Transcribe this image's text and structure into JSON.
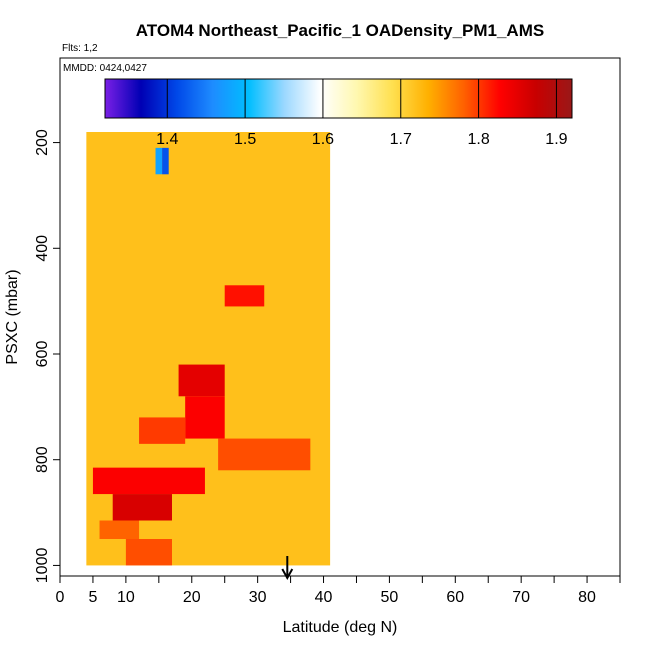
{
  "chart_data": {
    "type": "heatmap",
    "title": "ATOM4 Northeast_Pacific_1 OADensity_PM1_AMS",
    "flights_note": "Flts: 1,2",
    "dates_note": "MMDD: 0424,0427",
    "xlabel": "Latitude (deg N)",
    "ylabel": "PSXC (mbar)",
    "xlim": [
      0,
      85
    ],
    "ylim": [
      1020,
      40
    ],
    "x_ticks": [
      0,
      5,
      10,
      20,
      30,
      40,
      50,
      60,
      70,
      80
    ],
    "x_minor_ticks": [
      15,
      25,
      35,
      45,
      55,
      65,
      75,
      85
    ],
    "y_ticks": [
      200,
      400,
      600,
      800,
      1000
    ],
    "colorbar": {
      "min": 1.32,
      "max": 1.92,
      "ticks": [
        1.4,
        1.5,
        1.6,
        1.7,
        1.8,
        1.9
      ],
      "stops": [
        "#7a1fe6",
        "#0000b4",
        "#0048e8",
        "#1e8cff",
        "#00beff",
        "#9cd8ff",
        "#ffffff",
        "#fff8b0",
        "#ffe050",
        "#ffb000",
        "#ff6000",
        "#ff0000",
        "#c80000",
        "#9a1818"
      ]
    },
    "background_value": 1.72,
    "cells": [
      {
        "lat": [
          4,
          41
        ],
        "p": [
          180,
          1000
        ],
        "v": 1.72
      },
      {
        "lat": [
          25,
          31
        ],
        "p": [
          470,
          510
        ],
        "v": 1.82
      },
      {
        "lat": [
          18,
          25
        ],
        "p": [
          620,
          680
        ],
        "v": 1.85
      },
      {
        "lat": [
          19,
          25
        ],
        "p": [
          680,
          760
        ],
        "v": 1.83
      },
      {
        "lat": [
          12,
          19
        ],
        "p": [
          720,
          770
        ],
        "v": 1.8
      },
      {
        "lat": [
          24,
          38
        ],
        "p": [
          760,
          820
        ],
        "v": 1.79
      },
      {
        "lat": [
          5,
          22
        ],
        "p": [
          815,
          865
        ],
        "v": 1.83
      },
      {
        "lat": [
          8,
          17
        ],
        "p": [
          865,
          915
        ],
        "v": 1.86
      },
      {
        "lat": [
          6,
          12
        ],
        "p": [
          915,
          950
        ],
        "v": 1.78
      },
      {
        "lat": [
          10,
          17
        ],
        "p": [
          950,
          1000
        ],
        "v": 1.79
      },
      {
        "lat": [
          14.5,
          15.5
        ],
        "p": [
          210,
          260
        ],
        "v": 1.48
      },
      {
        "lat": [
          15.5,
          16.5
        ],
        "p": [
          210,
          260
        ],
        "v": 1.42
      }
    ],
    "marker": {
      "lat": 34.5,
      "label": "arrow"
    }
  }
}
